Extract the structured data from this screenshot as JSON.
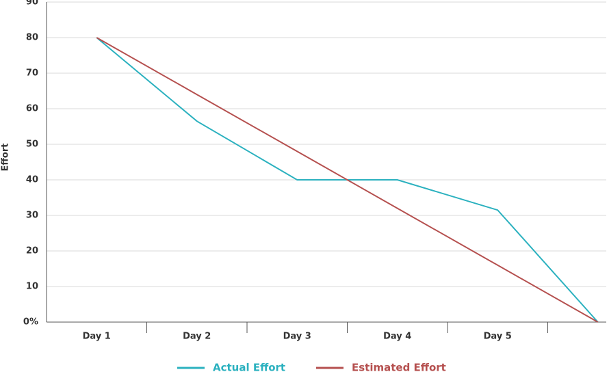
{
  "chart_data": {
    "type": "line",
    "y_label": "Effort",
    "categories": [
      "Day 1",
      "Day 2",
      "Day 3",
      "Day 4",
      "Day 5",
      null
    ],
    "series": [
      {
        "name": "Actual Effort",
        "color": "#2bb1bf",
        "values": [
          80,
          56.5,
          40,
          40,
          31.5,
          0
        ]
      },
      {
        "name": "Estimated Effort",
        "color": "#b5504f",
        "values": [
          80,
          64,
          48,
          32,
          16,
          0
        ]
      }
    ],
    "ylim": [
      0,
      90
    ],
    "yticks": [
      {
        "value": 0,
        "label": "0%"
      },
      10,
      20,
      30,
      40,
      50,
      60,
      70,
      80,
      90
    ],
    "grid": true,
    "legend": "bottom"
  }
}
